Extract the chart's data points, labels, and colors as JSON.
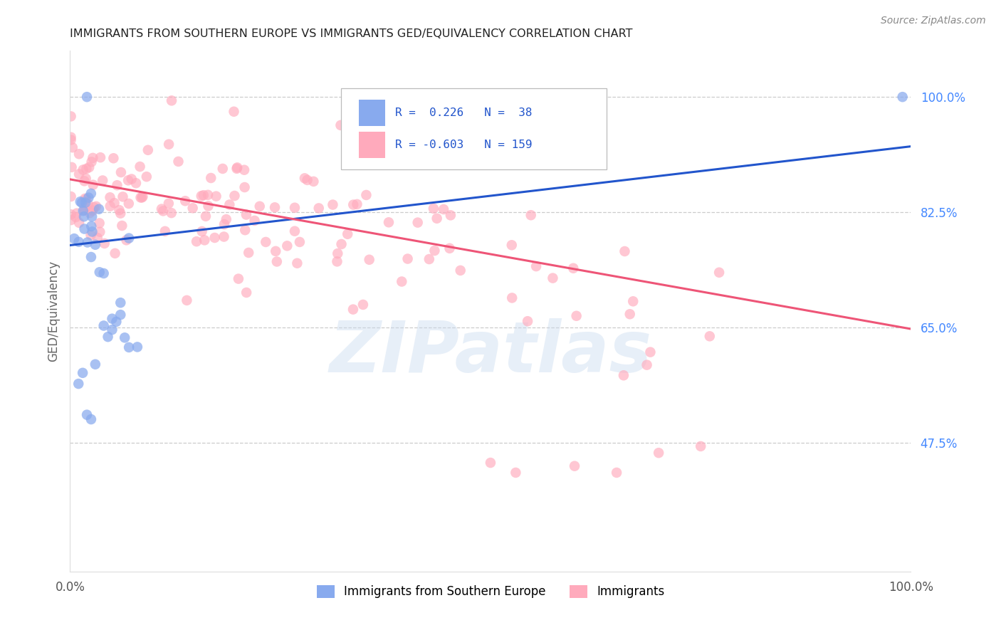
{
  "title": "IMMIGRANTS FROM SOUTHERN EUROPE VS IMMIGRANTS GED/EQUIVALENCY CORRELATION CHART",
  "source": "Source: ZipAtlas.com",
  "ylabel": "GED/Equivalency",
  "ytick_vals": [
    0.475,
    0.65,
    0.825,
    1.0
  ],
  "ytick_labels": [
    "47.5%",
    "65.0%",
    "82.5%",
    "100.0%"
  ],
  "xlim": [
    0.0,
    1.0
  ],
  "ylim": [
    0.28,
    1.07
  ],
  "blue_color": "#88aaee",
  "pink_color": "#ffaabc",
  "blue_line_color": "#2255cc",
  "pink_line_color": "#ee5577",
  "blue_R": 0.226,
  "blue_N": 38,
  "pink_R": -0.603,
  "pink_N": 159,
  "watermark_text": "ZIPatlas",
  "legend_label_blue": "Immigrants from Southern Europe",
  "legend_label_pink": "Immigrants",
  "blue_line_x0": 0.0,
  "blue_line_y0": 0.775,
  "blue_line_x1": 1.0,
  "blue_line_y1": 0.925,
  "pink_line_x0": 0.0,
  "pink_line_y0": 0.875,
  "pink_line_x1": 1.0,
  "pink_line_y1": 0.648
}
